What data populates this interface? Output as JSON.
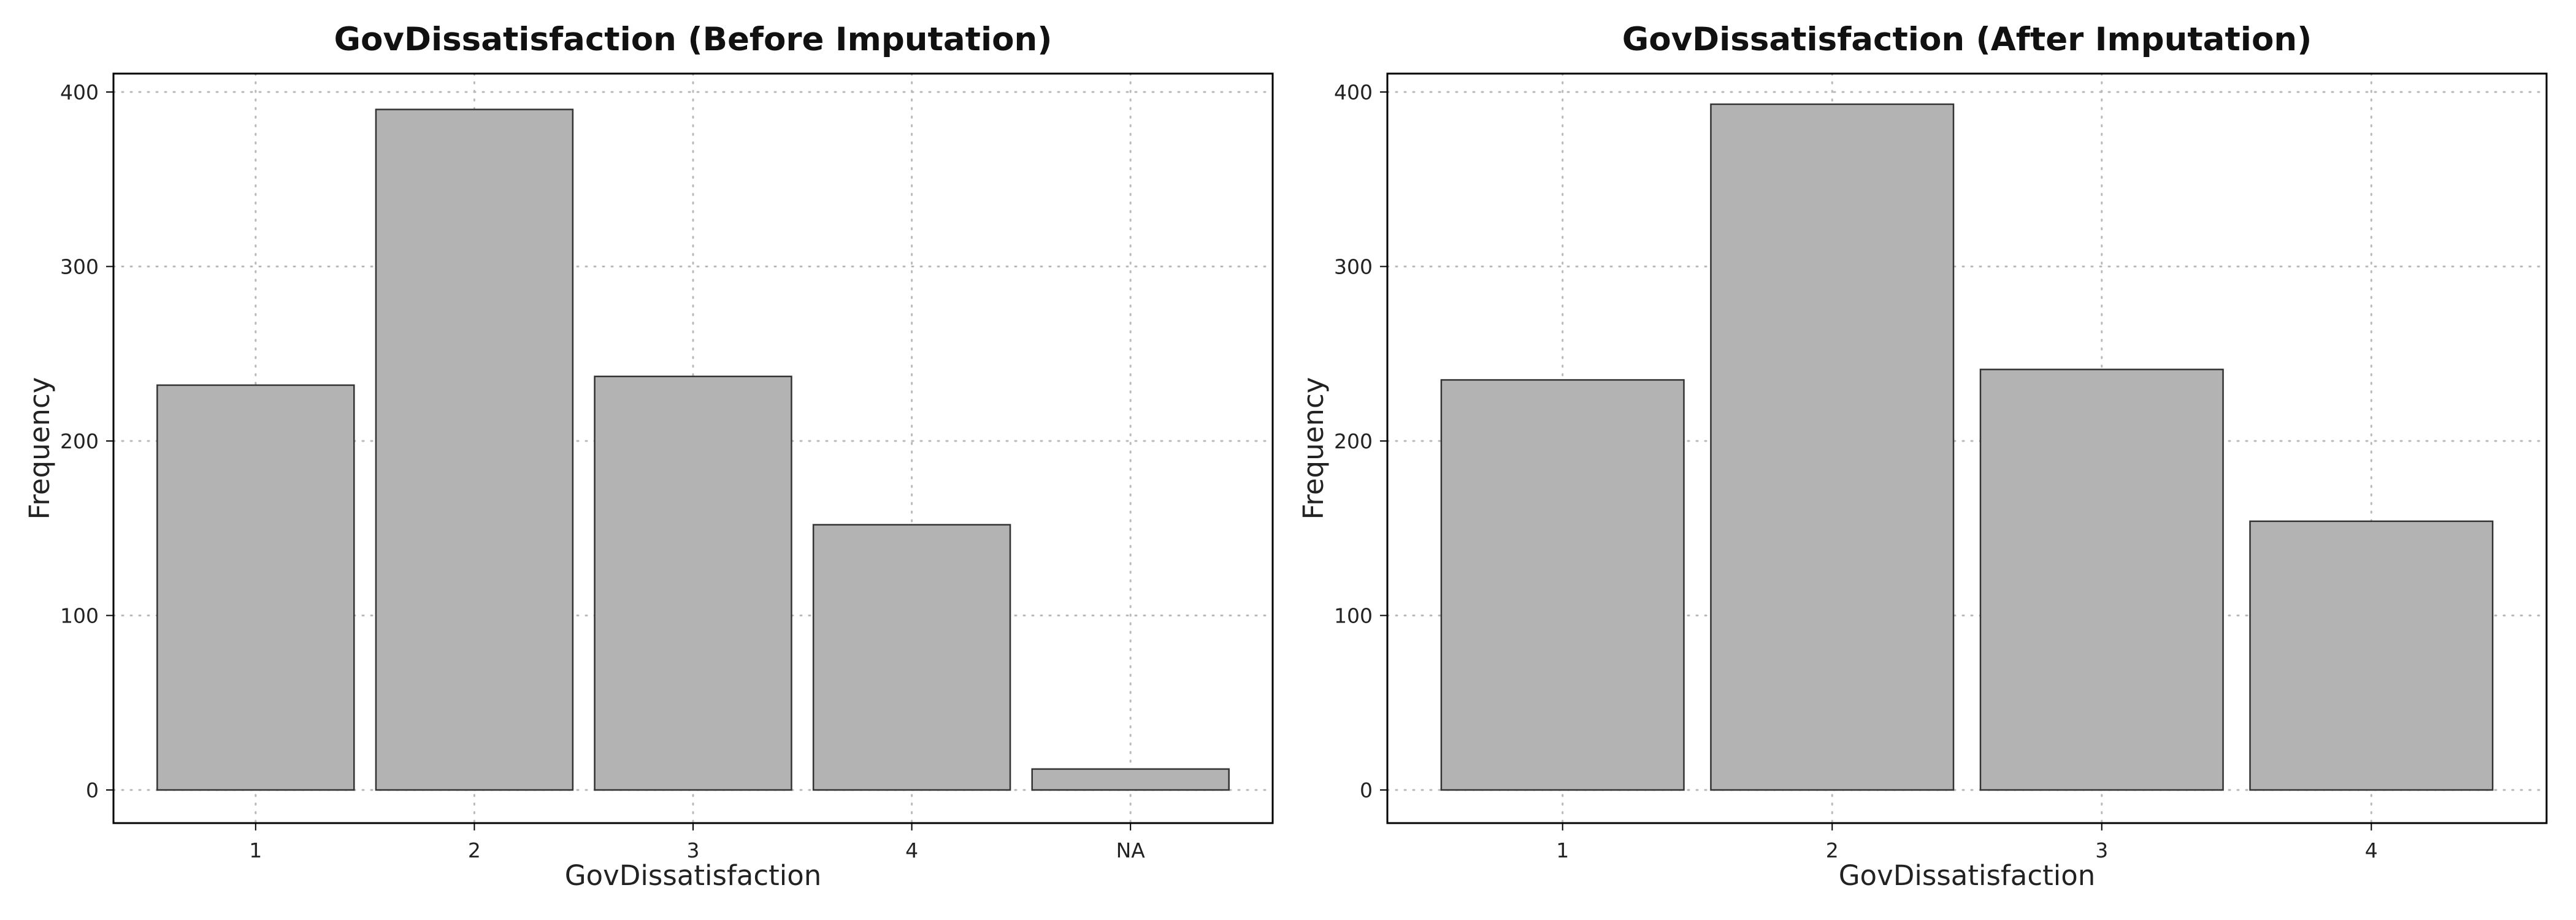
{
  "chart_data": [
    {
      "type": "bar",
      "title": "GovDissatisfaction (Before Imputation)",
      "xlabel": "GovDissatisfaction",
      "ylabel": "Frequency",
      "categories": [
        "1",
        "2",
        "3",
        "4",
        "NA"
      ],
      "values": [
        232,
        390,
        237,
        152,
        12
      ],
      "ylim": [
        0,
        410
      ],
      "yticks": [
        0,
        100,
        200,
        300,
        400
      ],
      "grid": true,
      "bar_color": "#b3b3b3"
    },
    {
      "type": "bar",
      "title": "GovDissatisfaction (After Imputation)",
      "xlabel": "GovDissatisfaction",
      "ylabel": "Frequency",
      "categories": [
        "1",
        "2",
        "3",
        "4"
      ],
      "values": [
        235,
        393,
        241,
        154
      ],
      "ylim": [
        0,
        410
      ],
      "yticks": [
        0,
        100,
        200,
        300,
        400
      ],
      "grid": true,
      "bar_color": "#b3b3b3"
    }
  ]
}
